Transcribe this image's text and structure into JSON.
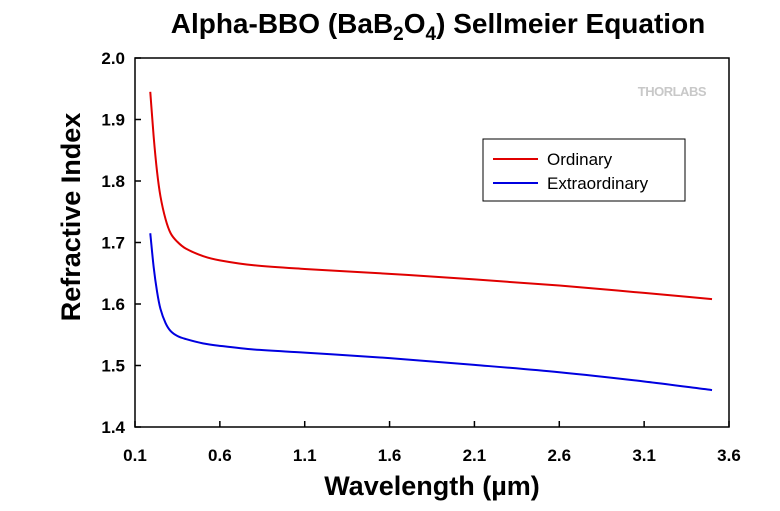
{
  "chart_data": {
    "type": "line",
    "title": {
      "prefix": "Alpha-BBO (BaB",
      "sub1": "2",
      "mid": "O",
      "sub2": "4",
      "suffix": ") Sellmeier Equation"
    },
    "xlabel": "Wavelength (µm)",
    "ylabel": "Refractive Index",
    "xlim": [
      0.1,
      3.6
    ],
    "ylim": [
      1.4,
      2.0
    ],
    "xticks": [
      "0.1",
      "0.6",
      "1.1",
      "1.6",
      "2.1",
      "2.6",
      "3.1",
      "3.6"
    ],
    "yticks": [
      "1.4",
      "1.5",
      "1.6",
      "1.7",
      "1.8",
      "1.9",
      "2.0"
    ],
    "legend_position": "top-right",
    "watermark": "THORLABS",
    "series": [
      {
        "name": "Ordinary",
        "color": "#e00000",
        "x": [
          0.19,
          0.21,
          0.23,
          0.25,
          0.28,
          0.31,
          0.35,
          0.4,
          0.5,
          0.6,
          0.8,
          1.1,
          1.6,
          2.1,
          2.6,
          3.1,
          3.5
        ],
        "y": [
          1.945,
          1.872,
          1.815,
          1.775,
          1.738,
          1.715,
          1.701,
          1.69,
          1.678,
          1.671,
          1.663,
          1.657,
          1.649,
          1.64,
          1.63,
          1.618,
          1.608
        ]
      },
      {
        "name": "Extraordinary",
        "color": "#0000e0",
        "x": [
          0.19,
          0.21,
          0.23,
          0.25,
          0.28,
          0.31,
          0.35,
          0.4,
          0.5,
          0.6,
          0.8,
          1.1,
          1.6,
          2.1,
          2.6,
          3.1,
          3.5
        ],
        "y": [
          1.715,
          1.66,
          1.62,
          1.592,
          1.569,
          1.556,
          1.548,
          1.543,
          1.536,
          1.532,
          1.526,
          1.521,
          1.512,
          1.501,
          1.489,
          1.474,
          1.46
        ]
      }
    ]
  }
}
